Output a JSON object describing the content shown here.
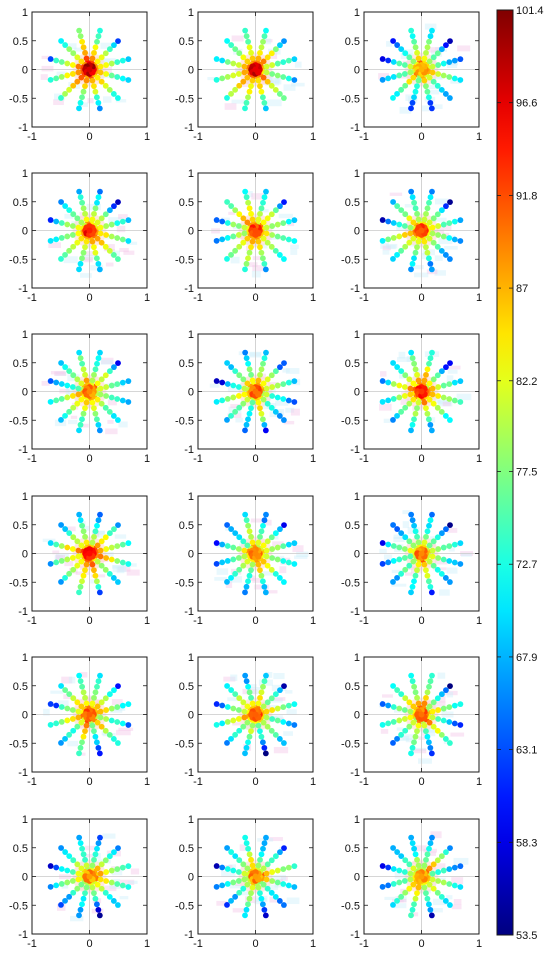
{
  "chart_data": {
    "type": "scatter",
    "layout": {
      "rows": 6,
      "cols": 3
    },
    "panel_axes": {
      "xlim": [
        -1,
        1
      ],
      "ylim": [
        -1,
        1
      ],
      "xticks": [
        -1,
        0,
        1
      ],
      "yticks": [
        1,
        0.5,
        0,
        -0.5,
        -1
      ],
      "xtick_labels": [
        "-1",
        "0",
        "1"
      ],
      "ytick_labels": [
        "1",
        "0.5",
        "0",
        "-0.5",
        "-1"
      ],
      "grid": "zero-lines"
    },
    "pattern": {
      "arms": 12,
      "points_per_arm": [
        0.12,
        0.2,
        0.3,
        0.4,
        0.5,
        0.6,
        0.7
      ],
      "center_ring_points": 8,
      "center_ring_radius": 0.07
    },
    "colorbar": {
      "min": 53.5,
      "max": 101.4,
      "colormap": "jet",
      "tick_values": [
        101.4,
        96.6,
        91.8,
        87,
        82.2,
        77.5,
        72.7,
        67.9,
        63.1,
        58.3,
        53.5
      ],
      "tick_labels": [
        "101.4",
        "96.6",
        "91.8",
        "87",
        "82.2",
        "77.5",
        "72.7",
        "67.9",
        "63.1",
        "58.3",
        "53.5"
      ]
    },
    "panels": [
      {
        "row": 1,
        "col": 1,
        "center_value": 100.5,
        "near_value": 90,
        "outer_value": 72,
        "spread": 5
      },
      {
        "row": 1,
        "col": 2,
        "center_value": 99.5,
        "near_value": 88,
        "outer_value": 72,
        "spread": 5
      },
      {
        "row": 1,
        "col": 3,
        "center_value": 90,
        "near_value": 84,
        "outer_value": 66,
        "spread": 6
      },
      {
        "row": 2,
        "col": 1,
        "center_value": 97,
        "near_value": 87,
        "outer_value": 70,
        "spread": 5
      },
      {
        "row": 2,
        "col": 2,
        "center_value": 95,
        "near_value": 86,
        "outer_value": 70,
        "spread": 5
      },
      {
        "row": 2,
        "col": 3,
        "center_value": 94,
        "near_value": 85,
        "outer_value": 68,
        "spread": 5
      },
      {
        "row": 3,
        "col": 1,
        "center_value": 92,
        "near_value": 84,
        "outer_value": 68,
        "spread": 6
      },
      {
        "row": 3,
        "col": 2,
        "center_value": 93,
        "near_value": 85,
        "outer_value": 68,
        "spread": 6
      },
      {
        "row": 3,
        "col": 3,
        "center_value": 96,
        "near_value": 86,
        "outer_value": 68,
        "spread": 6
      },
      {
        "row": 4,
        "col": 1,
        "center_value": 98,
        "near_value": 88,
        "outer_value": 70,
        "spread": 6
      },
      {
        "row": 4,
        "col": 2,
        "center_value": 92,
        "near_value": 84,
        "outer_value": 67,
        "spread": 6
      },
      {
        "row": 4,
        "col": 3,
        "center_value": 92,
        "near_value": 84,
        "outer_value": 67,
        "spread": 6
      },
      {
        "row": 5,
        "col": 1,
        "center_value": 94,
        "near_value": 85,
        "outer_value": 68,
        "spread": 6
      },
      {
        "row": 5,
        "col": 2,
        "center_value": 94,
        "near_value": 85,
        "outer_value": 68,
        "spread": 6
      },
      {
        "row": 5,
        "col": 3,
        "center_value": 93,
        "near_value": 85,
        "outer_value": 68,
        "spread": 6
      },
      {
        "row": 6,
        "col": 1,
        "center_value": 91,
        "near_value": 84,
        "outer_value": 68,
        "spread": 6
      },
      {
        "row": 6,
        "col": 2,
        "center_value": 91,
        "near_value": 84,
        "outer_value": 68,
        "spread": 6
      },
      {
        "row": 6,
        "col": 3,
        "center_value": 91,
        "near_value": 84,
        "outer_value": 68,
        "spread": 6
      }
    ]
  }
}
